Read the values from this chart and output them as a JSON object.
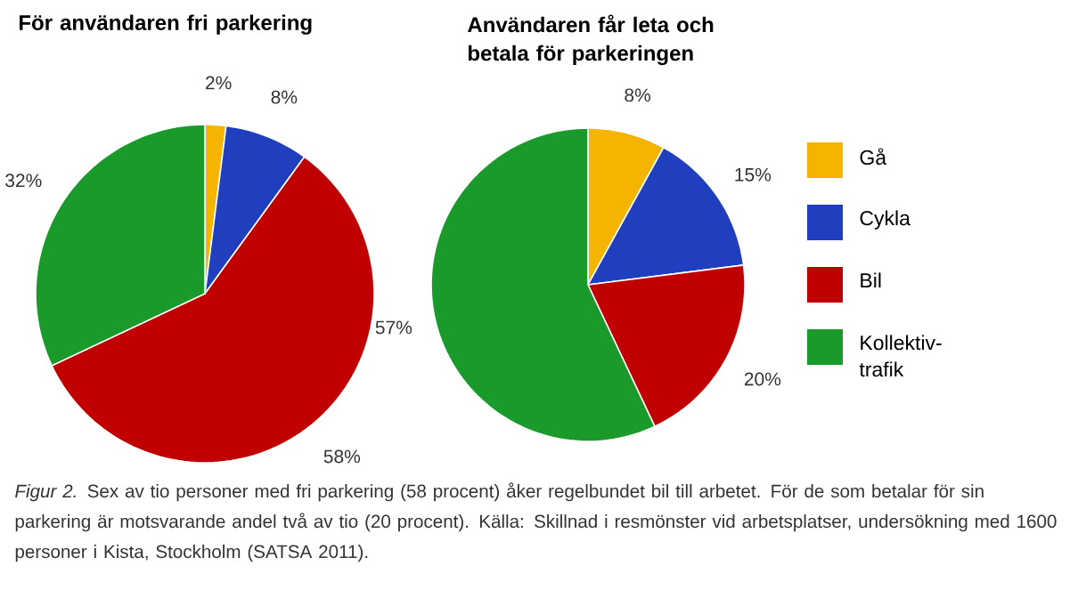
{
  "chart_data": [
    {
      "type": "pie",
      "title": "För användaren fri parkering",
      "categories": [
        null,
        null,
        null,
        null
      ],
      "values": [
        2,
        8,
        58,
        32
      ],
      "colors": [
        "#f5b400",
        "#1f3fbf",
        "#c00000",
        "#1a9a2a"
      ],
      "value_labels": [
        "2%",
        "8%",
        "58%",
        "32%"
      ],
      "legend": false
    },
    {
      "type": "pie",
      "title": "Användaren får leta och betala för parkeringen",
      "categories": [
        "Gå",
        "Cykla",
        "Bil",
        "Kollektiv-trafik"
      ],
      "values": [
        8,
        15,
        20,
        57
      ],
      "colors": [
        "#f5b400",
        "#1f3fbf",
        "#c00000",
        "#1a9a2a"
      ],
      "value_labels": [
        "8%",
        "15%",
        "20%",
        "57%"
      ],
      "legend": "right",
      "annotations": [
        "*Figur 2.* Sex av tio personer med fri parkering (58 procent) åker regelbundet bil till arbetet. För de som betalar för sin parkering är motsvarande andel två av tio (20 procent). Källa: Skillnad i resmönster vid arbetsplatser, undersökning med 1600 personer i Kista, Stockholm (SATSA 2011)."
      ]
    }
  ]
}
